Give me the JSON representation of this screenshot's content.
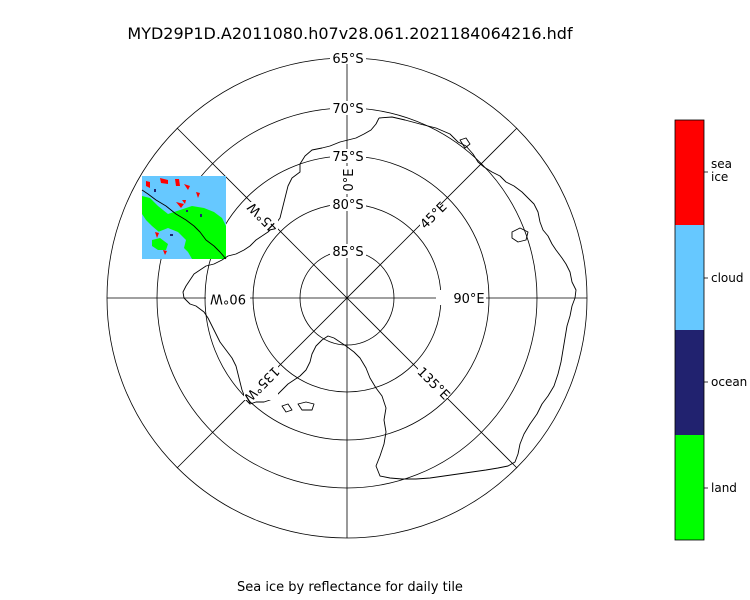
{
  "title": "MYD29P1D.A2011080.h07v28.061.2021184064216.hdf",
  "caption": "Sea ice by reflectance for daily tile",
  "projection": "south-polar-stereographic",
  "lat_labels": [
    "65°S",
    "70°S",
    "75°S",
    "80°S",
    "85°S"
  ],
  "lon_labels": {
    "deg0": "0°E",
    "deg45E": "45°E",
    "deg90E": "90°E",
    "deg135E": "135°E",
    "deg45W": "45°W",
    "deg90W": "90°W",
    "deg135W": "135°W"
  },
  "legend": [
    {
      "label": "sea\nice",
      "color": "#ff0000"
    },
    {
      "label": "cloud",
      "color": "#66c8ff"
    },
    {
      "label": "ocean",
      "color": "#21226f"
    },
    {
      "label": "land",
      "color": "#00ff00"
    }
  ],
  "tile_classes_present": [
    "land",
    "cloud",
    "sea ice"
  ]
}
